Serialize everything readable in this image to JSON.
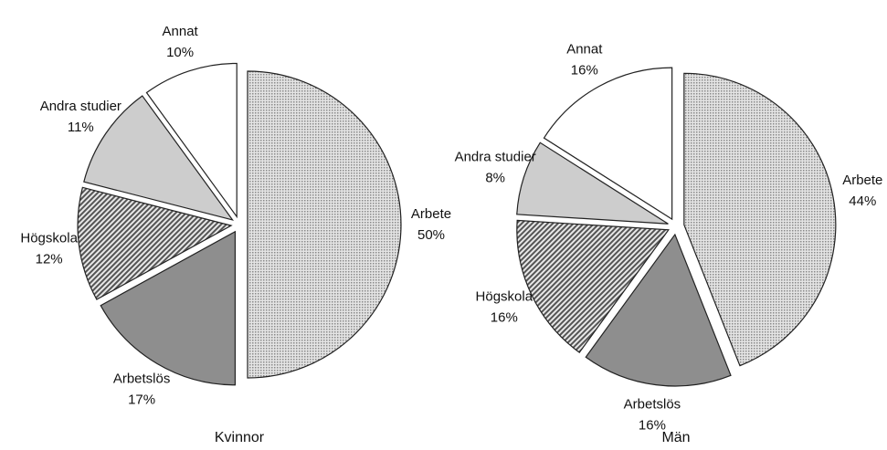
{
  "chart_data": [
    {
      "type": "pie",
      "title": "Kvinnor",
      "categories": [
        "Arbete",
        "Arbetslös",
        "Högskola",
        "Andra studier",
        "Annat"
      ],
      "values": [
        50,
        17,
        12,
        11,
        10
      ],
      "value_labels": [
        "50%",
        "17%",
        "12%",
        "11%",
        "10%"
      ],
      "colors": [
        "#d4d4d4",
        "#8e8e8e",
        "#bdbdbd",
        "#cdcdcd",
        "#ffffff"
      ]
    },
    {
      "type": "pie",
      "title": "Män",
      "categories": [
        "Arbete",
        "Arbetslös",
        "Högskola",
        "Andra studier",
        "Annat"
      ],
      "values": [
        44,
        16,
        16,
        8,
        16
      ],
      "value_labels": [
        "44%",
        "16%",
        "16%",
        "8%",
        "16%"
      ],
      "colors": [
        "#d4d4d4",
        "#8e8e8e",
        "#bdbdbd",
        "#cdcdcd",
        "#ffffff"
      ]
    }
  ]
}
